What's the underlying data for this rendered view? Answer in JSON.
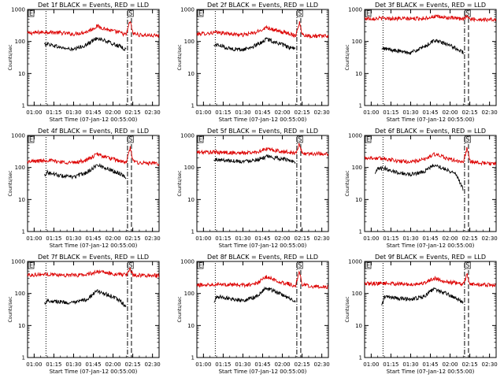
{
  "figure": {
    "background": "#ffffff",
    "events_color": "#000000",
    "lld_color": "#dd0000"
  },
  "chart_data": [
    {
      "type": "line",
      "title": "Det 1f BLACK = Events, RED = LLD",
      "xlabel": "Start Time (07-Jan-12 00:55:00)",
      "ylabel": "Counts/sec",
      "ylim": [
        1,
        1000
      ],
      "yscale": "log",
      "xlim": [
        "00:55",
        "02:35"
      ],
      "xticks": [
        "01:00",
        "01:15",
        "01:30",
        "01:45",
        "02:00",
        "02:15",
        "02:30"
      ],
      "yticks": [
        "1",
        "10",
        "100",
        "1000"
      ],
      "markers": [
        {
          "label": "E",
          "time": "00:55"
        },
        {
          "label": "S",
          "time": "02:13"
        }
      ],
      "vlines": [
        {
          "time": "01:09",
          "style": "dotted"
        },
        {
          "time": "02:11",
          "style": "dash-dot"
        },
        {
          "time": "02:14",
          "style": "dashed"
        }
      ],
      "series": [
        {
          "legend": "RED = LLD",
          "color": "#dd0000",
          "x": [
            "00:55",
            "01:10",
            "01:20",
            "01:30",
            "01:40",
            "01:48",
            "01:58",
            "02:05",
            "02:10",
            "02:13",
            "02:15",
            "02:20",
            "02:35"
          ],
          "y": [
            180,
            200,
            185,
            170,
            200,
            300,
            220,
            190,
            160,
            450,
            180,
            160,
            150
          ]
        },
        {
          "legend": "BLACK = Events",
          "color": "#000000",
          "x": [
            "01:08",
            "01:10",
            "01:20",
            "01:30",
            "01:40",
            "01:48",
            "01:58",
            "02:05",
            "02:10"
          ],
          "y": [
            80,
            85,
            65,
            55,
            80,
            130,
            90,
            70,
            55
          ]
        }
      ]
    },
    {
      "type": "line",
      "title": "Det 2f BLACK = Events, RED = LLD",
      "xlabel": "Start Time (07-Jan-12 00:55:00)",
      "ylabel": "Counts/sec",
      "ylim": [
        1,
        1000
      ],
      "yscale": "log",
      "xlim": [
        "00:55",
        "02:35"
      ],
      "xticks": [
        "01:00",
        "01:15",
        "01:30",
        "01:45",
        "02:00",
        "02:15",
        "02:30"
      ],
      "yticks": [
        "1",
        "10",
        "100",
        "1000"
      ],
      "markers": [
        {
          "label": "E",
          "time": "00:55"
        },
        {
          "label": "S",
          "time": "02:13"
        }
      ],
      "vlines": [
        {
          "time": "01:09",
          "style": "dotted"
        },
        {
          "time": "02:11",
          "style": "dash-dot"
        },
        {
          "time": "02:14",
          "style": "dashed"
        }
      ],
      "series": [
        {
          "legend": "RED = LLD",
          "color": "#dd0000",
          "x": [
            "00:55",
            "01:10",
            "01:20",
            "01:30",
            "01:40",
            "01:48",
            "01:58",
            "02:05",
            "02:10",
            "02:13",
            "02:15",
            "02:20",
            "02:35"
          ],
          "y": [
            170,
            190,
            175,
            160,
            190,
            280,
            200,
            180,
            150,
            400,
            170,
            150,
            145
          ]
        },
        {
          "legend": "BLACK = Events",
          "color": "#000000",
          "x": [
            "01:08",
            "01:10",
            "01:20",
            "01:30",
            "01:40",
            "01:48",
            "01:58",
            "02:05",
            "02:10"
          ],
          "y": [
            75,
            80,
            60,
            55,
            75,
            120,
            85,
            65,
            55
          ]
        }
      ]
    },
    {
      "type": "line",
      "title": "Det 3f BLACK = Events, RED = LLD",
      "xlabel": "Start Time (07-Jan-12 00:55:00)",
      "ylabel": "Counts/sec",
      "ylim": [
        1,
        1000
      ],
      "yscale": "log",
      "xlim": [
        "00:55",
        "02:35"
      ],
      "xticks": [
        "01:00",
        "01:15",
        "01:30",
        "01:45",
        "02:00",
        "02:15",
        "02:30"
      ],
      "yticks": [
        "1",
        "10",
        "100",
        "1000"
      ],
      "markers": [
        {
          "label": "E",
          "time": "00:55"
        },
        {
          "label": "S",
          "time": "02:13"
        }
      ],
      "vlines": [
        {
          "time": "01:09",
          "style": "dotted"
        },
        {
          "time": "02:11",
          "style": "dash-dot"
        },
        {
          "time": "02:14",
          "style": "dashed"
        }
      ],
      "series": [
        {
          "legend": "RED = LLD",
          "color": "#dd0000",
          "x": [
            "00:55",
            "01:10",
            "01:20",
            "01:30",
            "01:40",
            "01:48",
            "01:58",
            "02:05",
            "02:10",
            "02:13",
            "02:15",
            "02:20",
            "02:35"
          ],
          "y": [
            520,
            530,
            520,
            510,
            530,
            600,
            550,
            520,
            500,
            650,
            500,
            490,
            480
          ]
        },
        {
          "legend": "BLACK = Events",
          "color": "#000000",
          "x": [
            "01:08",
            "01:10",
            "01:20",
            "01:30",
            "01:40",
            "01:48",
            "01:58",
            "02:05",
            "02:10"
          ],
          "y": [
            55,
            60,
            50,
            45,
            65,
            110,
            80,
            60,
            45
          ]
        }
      ]
    },
    {
      "type": "line",
      "title": "Det 4f BLACK = Events, RED = LLD",
      "xlabel": "Start Time (07-Jan-12 00:55:00)",
      "ylabel": "Counts/sec",
      "ylim": [
        1,
        1000
      ],
      "yscale": "log",
      "xlim": [
        "00:55",
        "02:35"
      ],
      "xticks": [
        "01:00",
        "01:15",
        "01:30",
        "01:45",
        "02:00",
        "02:15",
        "02:30"
      ],
      "yticks": [
        "1",
        "10",
        "100",
        "1000"
      ],
      "markers": [
        {
          "label": "E",
          "time": "00:55"
        },
        {
          "label": "S",
          "time": "02:13"
        }
      ],
      "vlines": [
        {
          "time": "01:09",
          "style": "dotted"
        },
        {
          "time": "02:11",
          "style": "dash-dot"
        },
        {
          "time": "02:14",
          "style": "dashed"
        }
      ],
      "series": [
        {
          "legend": "RED = LLD",
          "color": "#dd0000",
          "x": [
            "00:55",
            "01:10",
            "01:20",
            "01:30",
            "01:40",
            "01:48",
            "01:58",
            "02:05",
            "02:10",
            "02:13",
            "02:15",
            "02:20",
            "02:35"
          ],
          "y": [
            150,
            170,
            150,
            140,
            170,
            260,
            190,
            160,
            140,
            420,
            160,
            140,
            130
          ]
        },
        {
          "legend": "BLACK = Events",
          "color": "#000000",
          "x": [
            "01:08",
            "01:10",
            "01:20",
            "01:30",
            "01:40",
            "01:48",
            "01:58",
            "02:05",
            "02:10"
          ],
          "y": [
            60,
            70,
            55,
            50,
            70,
            120,
            85,
            65,
            50
          ]
        }
      ]
    },
    {
      "type": "line",
      "title": "Det 5f BLACK = Events, RED = LLD",
      "xlabel": "Start Time (07-Jan-12 00:55:00)",
      "ylabel": "Counts/sec",
      "ylim": [
        1,
        1000
      ],
      "yscale": "log",
      "xlim": [
        "00:55",
        "02:35"
      ],
      "xticks": [
        "01:00",
        "01:15",
        "01:30",
        "01:45",
        "02:00",
        "02:15",
        "02:30"
      ],
      "yticks": [
        "1",
        "10",
        "100",
        "1000"
      ],
      "markers": [
        {
          "label": "E",
          "time": "00:55"
        },
        {
          "label": "S",
          "time": "02:13"
        }
      ],
      "vlines": [
        {
          "time": "01:09",
          "style": "dotted"
        },
        {
          "time": "02:11",
          "style": "dash-dot"
        },
        {
          "time": "02:14",
          "style": "dashed"
        }
      ],
      "series": [
        {
          "legend": "RED = LLD",
          "color": "#dd0000",
          "x": [
            "00:55",
            "01:10",
            "01:20",
            "01:30",
            "01:40",
            "01:48",
            "01:58",
            "02:05",
            "02:10",
            "02:13",
            "02:15",
            "02:20",
            "02:35"
          ],
          "y": [
            300,
            300,
            290,
            280,
            300,
            380,
            320,
            300,
            280,
            520,
            280,
            270,
            270
          ]
        },
        {
          "legend": "BLACK = Events",
          "color": "#000000",
          "x": [
            "01:08",
            "01:10",
            "01:20",
            "01:30",
            "01:40",
            "01:48",
            "01:58",
            "02:05",
            "02:10"
          ],
          "y": [
            165,
            175,
            165,
            155,
            175,
            215,
            190,
            170,
            150
          ]
        }
      ]
    },
    {
      "type": "line",
      "title": "Det 6f BLACK = Events, RED = LLD",
      "xlabel": "Start Time (07-Jan-12 00:55:00)",
      "ylabel": "Counts/sec",
      "ylim": [
        1,
        1000
      ],
      "yscale": "log",
      "xlim": [
        "00:55",
        "02:35"
      ],
      "xticks": [
        "01:00",
        "01:15",
        "01:30",
        "01:45",
        "02:00",
        "02:15",
        "02:30"
      ],
      "yticks": [
        "1",
        "10",
        "100",
        "1000"
      ],
      "markers": [
        {
          "label": "E",
          "time": "00:55"
        },
        {
          "label": "S",
          "time": "02:13"
        }
      ],
      "vlines": [
        {
          "time": "01:09",
          "style": "dotted"
        },
        {
          "time": "02:11",
          "style": "dash-dot"
        },
        {
          "time": "02:14",
          "style": "dashed"
        }
      ],
      "series": [
        {
          "legend": "RED = LLD",
          "color": "#dd0000",
          "x": [
            "00:55",
            "01:10",
            "01:20",
            "01:30",
            "01:40",
            "01:48",
            "01:58",
            "02:05",
            "02:10",
            "02:13",
            "02:15",
            "02:20",
            "02:35"
          ],
          "y": [
            200,
            190,
            160,
            150,
            175,
            260,
            190,
            160,
            140,
            430,
            160,
            140,
            130
          ]
        },
        {
          "legend": "BLACK = Events",
          "color": "#000000",
          "x": [
            "01:03",
            "01:05",
            "01:10",
            "01:20",
            "01:30",
            "01:40",
            "01:48",
            "01:58",
            "02:05",
            "02:10"
          ],
          "y": [
            60,
            90,
            95,
            70,
            60,
            75,
            120,
            85,
            60,
            20
          ]
        }
      ]
    },
    {
      "type": "line",
      "title": "Det 7f BLACK = Events, RED = LLD",
      "xlabel": "Start Time (07-Jan-12 00:55:00)",
      "ylabel": "Counts/sec",
      "ylim": [
        1,
        1000
      ],
      "yscale": "log",
      "xlim": [
        "00:55",
        "02:35"
      ],
      "xticks": [
        "01:00",
        "01:15",
        "01:30",
        "01:45",
        "02:00",
        "02:15",
        "02:30"
      ],
      "yticks": [
        "1",
        "10",
        "100",
        "1000"
      ],
      "markers": [
        {
          "label": "E",
          "time": "00:55"
        },
        {
          "label": "S",
          "time": "02:13"
        }
      ],
      "vlines": [
        {
          "time": "01:09",
          "style": "dotted"
        },
        {
          "time": "02:11",
          "style": "dash-dot"
        },
        {
          "time": "02:14",
          "style": "dashed"
        }
      ],
      "series": [
        {
          "legend": "RED = LLD",
          "color": "#dd0000",
          "x": [
            "00:55",
            "01:10",
            "01:20",
            "01:30",
            "01:40",
            "01:48",
            "01:58",
            "02:05",
            "02:10",
            "02:13",
            "02:15",
            "02:20",
            "02:35"
          ],
          "y": [
            380,
            400,
            380,
            370,
            390,
            480,
            420,
            400,
            370,
            600,
            380,
            370,
            360
          ]
        },
        {
          "legend": "BLACK = Events",
          "color": "#000000",
          "x": [
            "01:08",
            "01:10",
            "01:20",
            "01:30",
            "01:40",
            "01:48",
            "01:58",
            "02:05",
            "02:10"
          ],
          "y": [
            50,
            60,
            55,
            50,
            65,
            120,
            85,
            60,
            40
          ]
        }
      ]
    },
    {
      "type": "line",
      "title": "Det 8f BLACK = Events, RED = LLD",
      "xlabel": "Start Time (07-Jan-12 00:55:00)",
      "ylabel": "Counts/sec",
      "ylim": [
        1,
        1000
      ],
      "yscale": "log",
      "xlim": [
        "00:55",
        "02:35"
      ],
      "xticks": [
        "01:00",
        "01:15",
        "01:30",
        "01:45",
        "02:00",
        "02:15",
        "02:30"
      ],
      "yticks": [
        "1",
        "10",
        "100",
        "1000"
      ],
      "markers": [
        {
          "label": "E",
          "time": "00:55"
        },
        {
          "label": "S",
          "time": "02:13"
        }
      ],
      "vlines": [
        {
          "time": "01:09",
          "style": "dotted"
        },
        {
          "time": "02:11",
          "style": "dash-dot"
        },
        {
          "time": "02:14",
          "style": "dashed"
        }
      ],
      "series": [
        {
          "legend": "RED = LLD",
          "color": "#dd0000",
          "x": [
            "00:55",
            "01:10",
            "01:20",
            "01:30",
            "01:40",
            "01:48",
            "01:58",
            "02:05",
            "02:10",
            "02:13",
            "02:15",
            "02:20",
            "02:35"
          ],
          "y": [
            180,
            200,
            190,
            180,
            200,
            330,
            230,
            200,
            170,
            500,
            190,
            170,
            160
          ]
        },
        {
          "legend": "BLACK = Events",
          "color": "#000000",
          "x": [
            "01:08",
            "01:10",
            "01:20",
            "01:30",
            "01:40",
            "01:48",
            "01:58",
            "02:05",
            "02:10"
          ],
          "y": [
            50,
            80,
            70,
            60,
            80,
            150,
            100,
            70,
            55
          ]
        }
      ]
    },
    {
      "type": "line",
      "title": "Det 9f BLACK = Events, RED = LLD",
      "xlabel": "Start Time (07-Jan-12 00:55:00)",
      "ylabel": "Counts/sec",
      "ylim": [
        1,
        1000
      ],
      "yscale": "log",
      "xlim": [
        "00:55",
        "02:35"
      ],
      "xticks": [
        "01:00",
        "01:15",
        "01:30",
        "01:45",
        "02:00",
        "02:15",
        "02:30"
      ],
      "yticks": [
        "1",
        "10",
        "100",
        "1000"
      ],
      "markers": [
        {
          "label": "E",
          "time": "00:55"
        },
        {
          "label": "S",
          "time": "02:13"
        }
      ],
      "vlines": [
        {
          "time": "01:09",
          "style": "dotted"
        },
        {
          "time": "02:11",
          "style": "dash-dot"
        },
        {
          "time": "02:14",
          "style": "dashed"
        }
      ],
      "series": [
        {
          "legend": "RED = LLD",
          "color": "#dd0000",
          "x": [
            "00:55",
            "01:10",
            "01:20",
            "01:30",
            "01:40",
            "01:48",
            "01:58",
            "02:05",
            "02:10",
            "02:13",
            "02:15",
            "02:20",
            "02:35"
          ],
          "y": [
            200,
            210,
            200,
            190,
            210,
            300,
            230,
            210,
            190,
            400,
            200,
            190,
            180
          ]
        },
        {
          "legend": "BLACK = Events",
          "color": "#000000",
          "x": [
            "01:08",
            "01:10",
            "01:20",
            "01:30",
            "01:40",
            "01:48",
            "01:58",
            "02:05",
            "02:10"
          ],
          "y": [
            40,
            80,
            70,
            65,
            80,
            140,
            95,
            70,
            50
          ]
        }
      ]
    }
  ]
}
